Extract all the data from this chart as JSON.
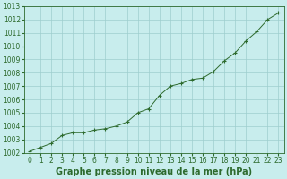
{
  "x": [
    0,
    1,
    2,
    3,
    4,
    5,
    6,
    7,
    8,
    9,
    10,
    11,
    12,
    13,
    14,
    15,
    16,
    17,
    18,
    19,
    20,
    21,
    22,
    23
  ],
  "y": [
    1002.1,
    1002.4,
    1002.7,
    1003.3,
    1003.5,
    1003.5,
    1003.7,
    1003.8,
    1004.0,
    1004.3,
    1005.0,
    1005.3,
    1006.3,
    1007.0,
    1007.2,
    1007.5,
    1007.6,
    1008.1,
    1008.9,
    1009.5,
    1010.4,
    1011.1,
    1012.0,
    1012.5
  ],
  "line_color": "#2d6a2d",
  "marker_color": "#2d6a2d",
  "bg_color": "#c8eded",
  "grid_color": "#9ecece",
  "text_color": "#2d6a2d",
  "xlabel": "Graphe pression niveau de la mer (hPa)",
  "ylim_min": 1002,
  "ylim_max": 1013,
  "xlim_min": 0,
  "xlim_max": 23,
  "ylabel_fontsize": 6,
  "xlabel_fontsize": 7,
  "tick_fontsize": 5.5
}
